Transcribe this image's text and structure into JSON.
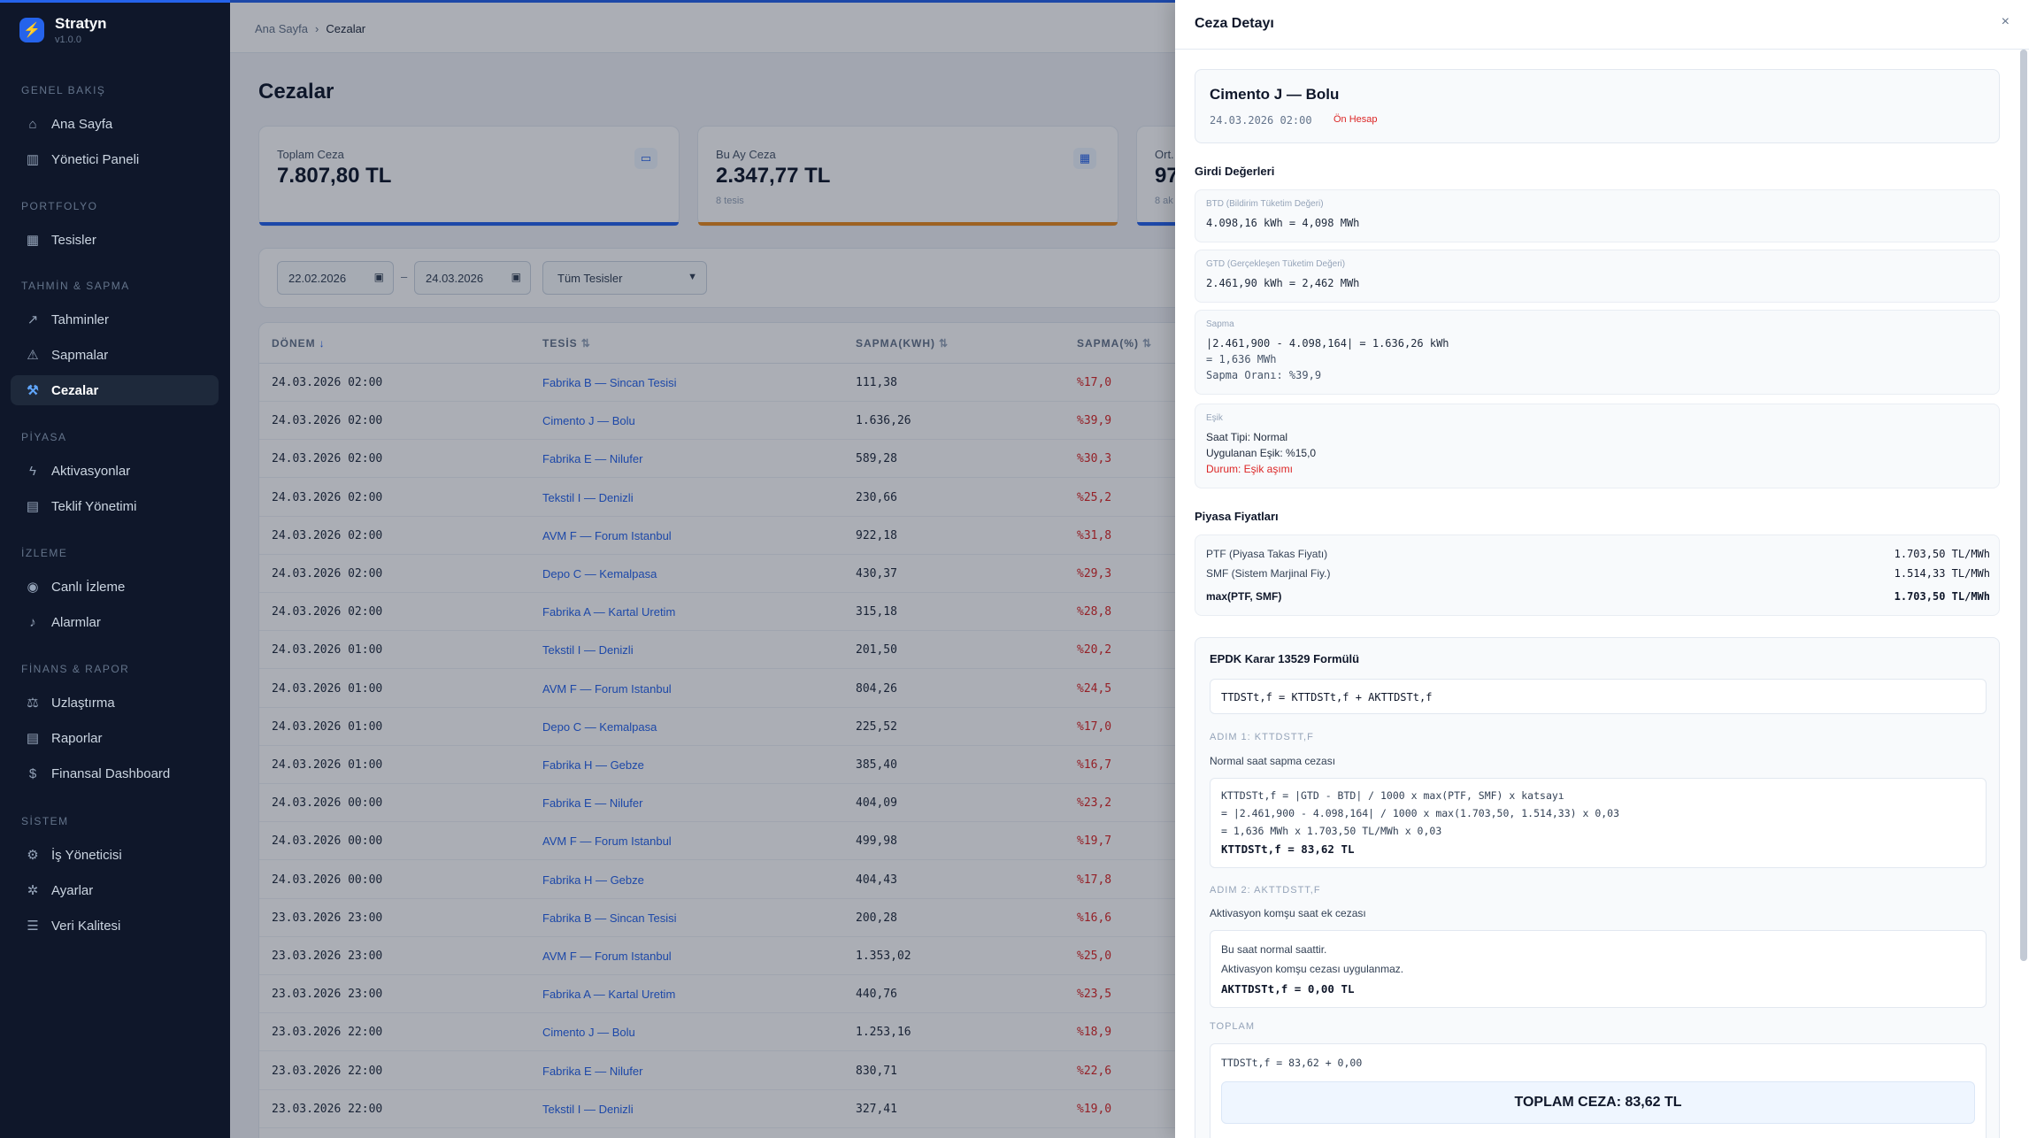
{
  "app": {
    "name": "Stratyn",
    "version": "v1.0.0"
  },
  "sidebar": {
    "sections": [
      {
        "title": "GENEL BAKIŞ",
        "items": [
          {
            "label": "Ana Sayfa",
            "icon": "home-icon"
          },
          {
            "label": "Yönetici Paneli",
            "icon": "bar-chart-icon"
          }
        ]
      },
      {
        "title": "PORTFOLYO",
        "items": [
          {
            "label": "Tesisler",
            "icon": "building-icon"
          }
        ]
      },
      {
        "title": "TAHMİN & SAPMA",
        "items": [
          {
            "label": "Tahminler",
            "icon": "trend-icon"
          },
          {
            "label": "Sapmalar",
            "icon": "warning-icon"
          },
          {
            "label": "Cezalar",
            "icon": "gavel-icon",
            "active": true
          }
        ]
      },
      {
        "title": "PİYASA",
        "items": [
          {
            "label": "Aktivasyonlar",
            "icon": "bolt-icon"
          },
          {
            "label": "Teklif Yönetimi",
            "icon": "document-icon"
          }
        ]
      },
      {
        "title": "İZLEME",
        "items": [
          {
            "label": "Canlı İzleme",
            "icon": "broadcast-icon"
          },
          {
            "label": "Alarmlar",
            "icon": "bell-icon"
          }
        ]
      },
      {
        "title": "FİNANS & RAPOR",
        "items": [
          {
            "label": "Uzlaştırma",
            "icon": "scale-icon"
          },
          {
            "label": "Raporlar",
            "icon": "report-icon"
          },
          {
            "label": "Finansal Dashboard",
            "icon": "dollar-icon"
          }
        ]
      },
      {
        "title": "SİSTEM",
        "items": [
          {
            "label": "İş Yöneticisi",
            "icon": "cog-icon"
          },
          {
            "label": "Ayarlar",
            "icon": "gear-icon"
          },
          {
            "label": "Veri Kalitesi",
            "icon": "database-icon"
          }
        ]
      }
    ]
  },
  "breadcrumb": {
    "home": "Ana Sayfa",
    "separator": "›",
    "current": "Cezalar"
  },
  "page": {
    "title": "Cezalar"
  },
  "cards": [
    {
      "label": "Toplam Ceza",
      "value": "7.807,80 TL",
      "sub": "",
      "icon": "money-icon",
      "bar_color": "#2563eb"
    },
    {
      "label": "Bu Ay Ceza",
      "value": "2.347,77 TL",
      "sub": "8 tesis",
      "icon": "calendar-icon",
      "bar_color": "#ea8a1e"
    },
    {
      "label": "Ort.",
      "value": "97",
      "sub": "8 ak",
      "icon": "",
      "bar_color": "#2563eb"
    }
  ],
  "filters": {
    "date_from": "22.02.2026",
    "date_sep": "–",
    "date_to": "24.03.2026",
    "facility": "Tüm Tesisler"
  },
  "table": {
    "headers": {
      "period": "DÖNEM",
      "facility": "TESİS",
      "kwh": "SAPMA(KWH)",
      "pct": "SAPMA(%)"
    },
    "sort_asc": "↓",
    "sort_both": "⇅",
    "rows": [
      {
        "period": "24.03.2026 02:00",
        "facility": "Fabrika B — Sincan Tesisi",
        "kwh": "111,38",
        "pct": "%17,0"
      },
      {
        "period": "24.03.2026 02:00",
        "facility": "Cimento J — Bolu",
        "kwh": "1.636,26",
        "pct": "%39,9"
      },
      {
        "period": "24.03.2026 02:00",
        "facility": "Fabrika E — Nilufer",
        "kwh": "589,28",
        "pct": "%30,3"
      },
      {
        "period": "24.03.2026 02:00",
        "facility": "Tekstil I — Denizli",
        "kwh": "230,66",
        "pct": "%25,2"
      },
      {
        "period": "24.03.2026 02:00",
        "facility": "AVM F — Forum Istanbul",
        "kwh": "922,18",
        "pct": "%31,8"
      },
      {
        "period": "24.03.2026 02:00",
        "facility": "Depo C — Kemalpasa",
        "kwh": "430,37",
        "pct": "%29,3"
      },
      {
        "period": "24.03.2026 02:00",
        "facility": "Fabrika A — Kartal Uretim",
        "kwh": "315,18",
        "pct": "%28,8"
      },
      {
        "period": "24.03.2026 01:00",
        "facility": "Tekstil I — Denizli",
        "kwh": "201,50",
        "pct": "%20,2"
      },
      {
        "period": "24.03.2026 01:00",
        "facility": "AVM F — Forum Istanbul",
        "kwh": "804,26",
        "pct": "%24,5"
      },
      {
        "period": "24.03.2026 01:00",
        "facility": "Depo C — Kemalpasa",
        "kwh": "225,52",
        "pct": "%17,0"
      },
      {
        "period": "24.03.2026 01:00",
        "facility": "Fabrika H — Gebze",
        "kwh": "385,40",
        "pct": "%16,7"
      },
      {
        "period": "24.03.2026 00:00",
        "facility": "Fabrika E — Nilufer",
        "kwh": "404,09",
        "pct": "%23,2"
      },
      {
        "period": "24.03.2026 00:00",
        "facility": "AVM F — Forum Istanbul",
        "kwh": "499,98",
        "pct": "%19,7"
      },
      {
        "period": "24.03.2026 00:00",
        "facility": "Fabrika H — Gebze",
        "kwh": "404,43",
        "pct": "%17,8"
      },
      {
        "period": "23.03.2026 23:00",
        "facility": "Fabrika B — Sincan Tesisi",
        "kwh": "200,28",
        "pct": "%16,6"
      },
      {
        "period": "23.03.2026 23:00",
        "facility": "AVM F — Forum Istanbul",
        "kwh": "1.353,02",
        "pct": "%25,0"
      },
      {
        "period": "23.03.2026 23:00",
        "facility": "Fabrika A — Kartal Uretim",
        "kwh": "440,76",
        "pct": "%23,5"
      },
      {
        "period": "23.03.2026 22:00",
        "facility": "Cimento J — Bolu",
        "kwh": "1.253,16",
        "pct": "%18,9"
      },
      {
        "period": "23.03.2026 22:00",
        "facility": "Fabrika E — Nilufer",
        "kwh": "830,71",
        "pct": "%22,6"
      },
      {
        "period": "23.03.2026 22:00",
        "facility": "Tekstil I — Denizli",
        "kwh": "327,41",
        "pct": "%19,0"
      }
    ]
  },
  "drawer": {
    "title": "Ceza Detayı",
    "close": "×",
    "summary": {
      "facility": "Cimento J — Bolu",
      "date": "24.03.2026 02:00",
      "badge": "Ön Hesap"
    },
    "inputs_title": "Girdi Değerleri",
    "btd": {
      "caption": "BTD (Bildirim Tüketim Değeri)",
      "value": "4.098,16 kWh = 4,098 MWh"
    },
    "gtd": {
      "caption": "GTD (Gerçekleşen Tüketim Değeri)",
      "value": "2.461,90 kWh = 2,462 MWh"
    },
    "sapma": {
      "caption": "Sapma",
      "line1": "|2.461,900 - 4.098,164| = 1.636,26 kWh",
      "line2": "= 1,636 MWh",
      "line3": "Sapma Oranı: %39,9"
    },
    "esik": {
      "caption": "Eşik",
      "line1": "Saat Tipi: Normal",
      "line2": "Uygulanan Eşik: %15,0",
      "line3": "Durum: Eşik aşımı"
    },
    "prices_title": "Piyasa Fiyatları",
    "prices": [
      {
        "label": "PTF (Piyasa Takas Fiyatı)",
        "value": "1.703,50 TL/MWh"
      },
      {
        "label": "SMF (Sistem Marjinal Fiy.)",
        "value": "1.514,33 TL/MWh"
      },
      {
        "label": "max(PTF, SMF)",
        "value": "1.703,50 TL/MWh"
      }
    ],
    "formula": {
      "title": "EPDK Karar 13529 Formülü",
      "main": "TTDSTt,f = KTTDSTt,f + AKTTDSTt,f",
      "step1_label": "ADIM 1: KTTDSTT,F",
      "step1_desc": "Normal saat sapma cezası",
      "step1_lines": [
        "KTTDSTt,f = |GTD - BTD| / 1000 x max(PTF, SMF) x katsayı",
        "= |2.461,900 - 4.098,164| / 1000 x max(1.703,50, 1.514,33) x 0,03",
        "= 1,636 MWh x 1.703,50 TL/MWh x 0,03"
      ],
      "step1_result": "KTTDSTt,f = 83,62 TL",
      "step2_label": "ADIM 2: AKTTDSTT,F",
      "step2_desc": "Aktivasyon komşu saat ek cezası",
      "step2_lines": [
        "Bu saat normal saattir.",
        "Aktivasyon komşu cezası uygulanmaz."
      ],
      "step2_result": "AKTTDSTt,f = 0,00 TL",
      "total_label": "TOPLAM",
      "total_calc": "TTDSTt,f = 83,62 + 0,00",
      "total_result": "TOPLAM CEZA: 83,62 TL"
    }
  }
}
